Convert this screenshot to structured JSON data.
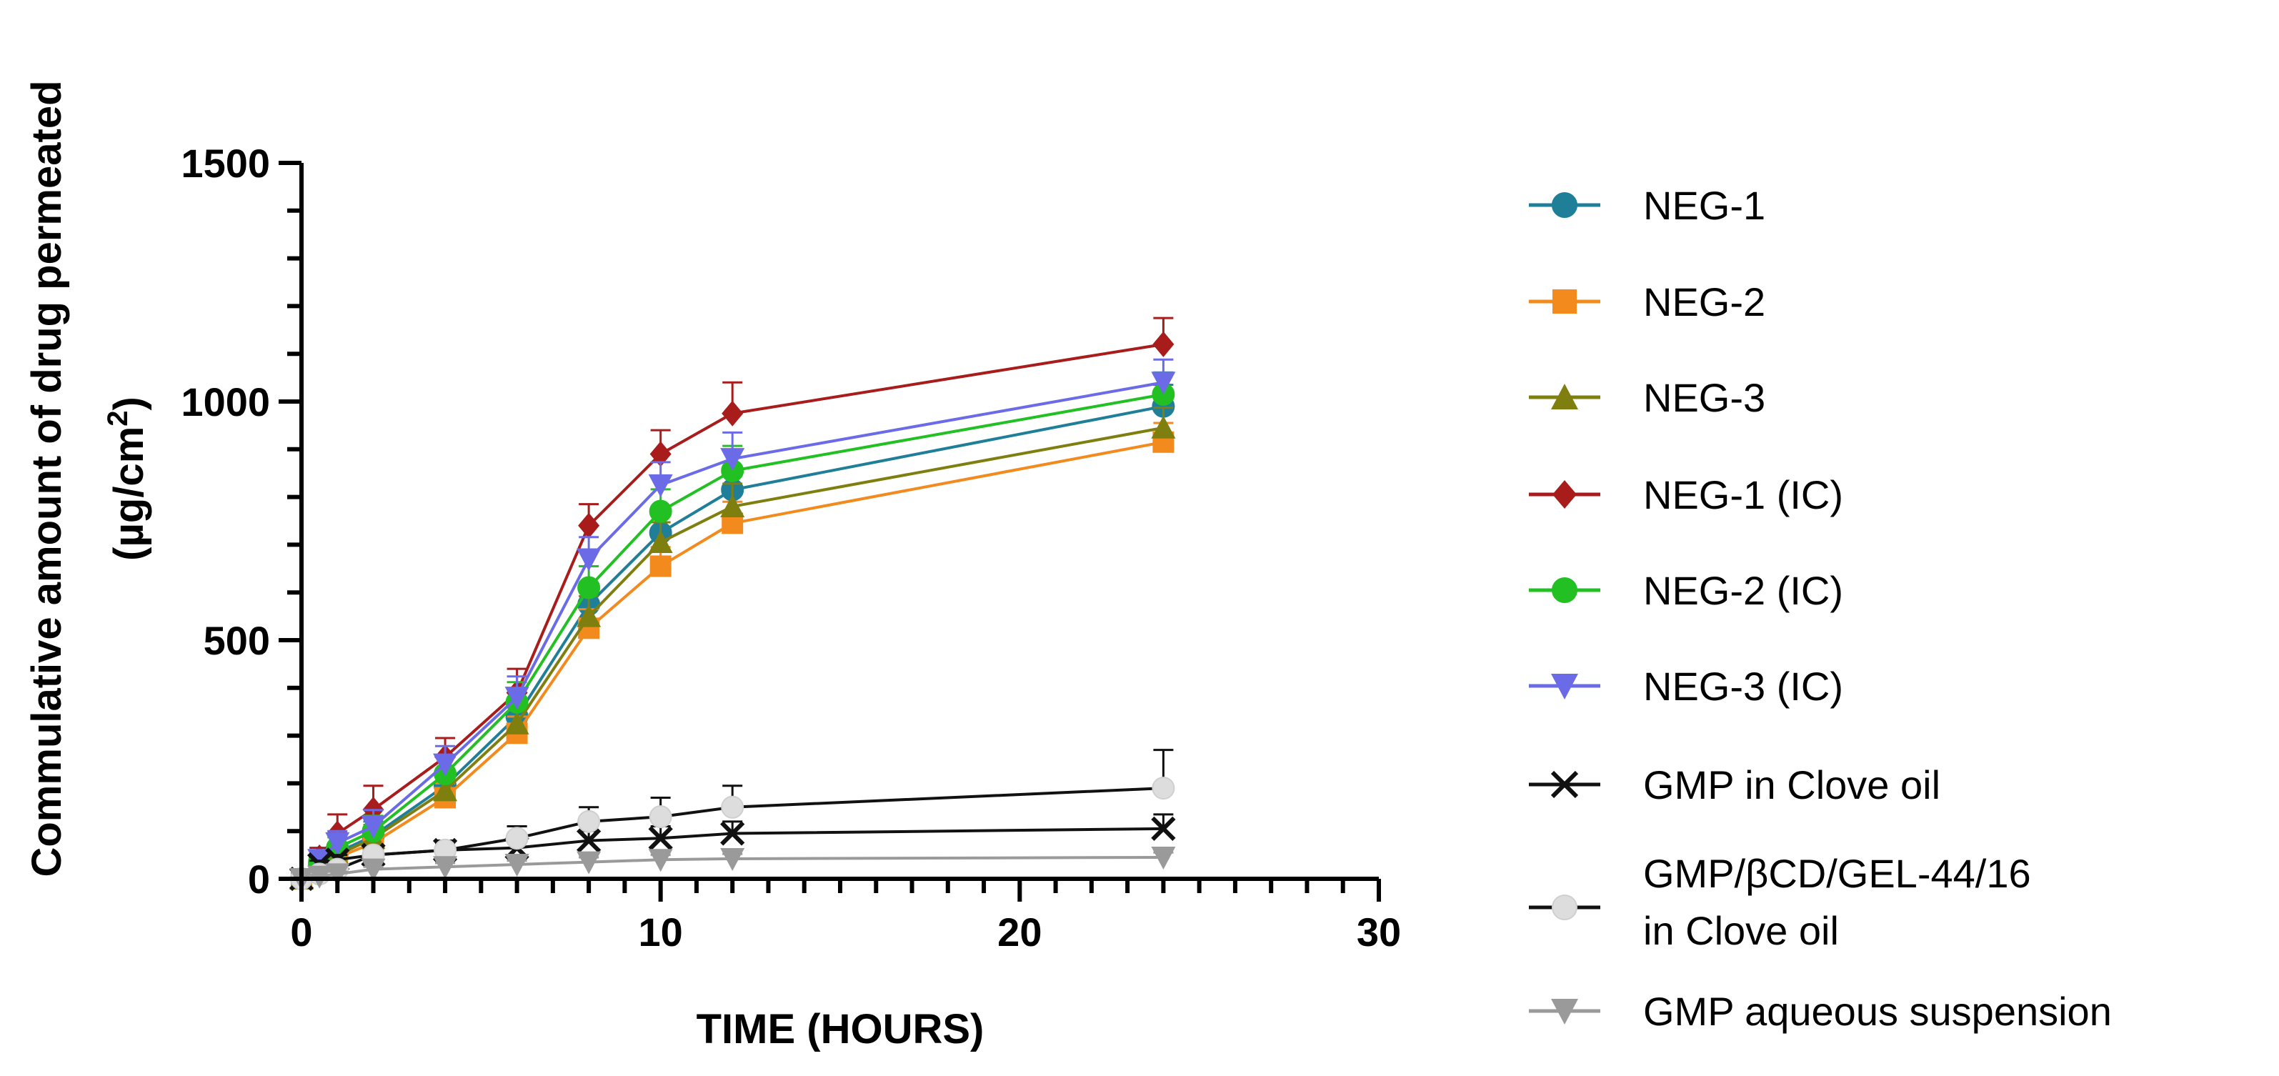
{
  "chart_data": {
    "type": "line",
    "title": "",
    "xlabel": "TIME (HOURS)",
    "ylabel_line1": "Commulative amount of drug permeated",
    "ylabel_line2": "(µg/cm",
    "ylabel_sup": "2",
    "ylabel_close": ")",
    "xlim": [
      0,
      30
    ],
    "ylim": [
      0,
      1500
    ],
    "x_ticks": [
      0,
      10,
      20,
      30
    ],
    "y_ticks": [
      0,
      500,
      1000,
      1500
    ],
    "x_tick_labels": [
      "0",
      "10",
      "20",
      "30"
    ],
    "y_tick_labels": [
      "0",
      "500",
      "1000",
      "1500"
    ],
    "legend_position": "right",
    "x": [
      0,
      0.5,
      1,
      2,
      4,
      6,
      8,
      10,
      12,
      24
    ],
    "series": [
      {
        "name": "NEG-1",
        "color": "#1f7f98",
        "marker": "circle",
        "values": [
          0,
          30,
          55,
          90,
          195,
          340,
          575,
          725,
          815,
          990
        ],
        "errors": [
          0,
          10,
          20,
          30,
          35,
          40,
          45,
          45,
          50,
          45
        ]
      },
      {
        "name": "NEG-2",
        "color": "#f28a1e",
        "marker": "square",
        "values": [
          0,
          25,
          45,
          75,
          170,
          305,
          525,
          655,
          745,
          915
        ],
        "errors": [
          0,
          10,
          15,
          25,
          30,
          35,
          40,
          40,
          45,
          40
        ]
      },
      {
        "name": "NEG-3",
        "color": "#7f7f10",
        "marker": "triangle-up",
        "values": [
          0,
          28,
          50,
          85,
          185,
          325,
          550,
          705,
          780,
          945
        ],
        "errors": [
          0,
          10,
          18,
          28,
          32,
          38,
          42,
          42,
          48,
          42
        ]
      },
      {
        "name": "NEG-1 (IC)",
        "color": "#a81c1c",
        "marker": "diamond",
        "values": [
          0,
          45,
          95,
          145,
          255,
          390,
          740,
          890,
          975,
          1120
        ],
        "errors": [
          0,
          20,
          40,
          50,
          40,
          50,
          45,
          50,
          65,
          55
        ]
      },
      {
        "name": "NEG-2 (IC)",
        "color": "#22c022",
        "marker": "circle",
        "values": [
          0,
          35,
          65,
          100,
          220,
          370,
          610,
          770,
          855,
          1015
        ],
        "errors": [
          0,
          12,
          22,
          32,
          36,
          42,
          45,
          46,
          52,
          46
        ]
      },
      {
        "name": "NEG-3 (IC)",
        "color": "#6b6be8",
        "marker": "triangle-down",
        "values": [
          0,
          40,
          75,
          110,
          240,
          380,
          670,
          825,
          880,
          1040
        ],
        "errors": [
          0,
          14,
          25,
          34,
          38,
          44,
          46,
          48,
          55,
          48
        ]
      },
      {
        "name": "GMP in Clove oil",
        "color": "#111111",
        "marker": "x",
        "values": [
          0,
          30,
          40,
          50,
          60,
          65,
          80,
          85,
          95,
          105
        ],
        "errors": [
          0,
          8,
          10,
          12,
          15,
          45,
          20,
          25,
          25,
          30
        ]
      },
      {
        "name": "GMP/βCD/GEL-44/16",
        "name_line2": "in Clove oil",
        "color": "#dddddd",
        "marker": "circle",
        "values": [
          0,
          10,
          20,
          50,
          60,
          85,
          120,
          130,
          150,
          190
        ],
        "errors": [
          0,
          5,
          8,
          15,
          20,
          25,
          30,
          40,
          45,
          80
        ]
      },
      {
        "name": "GMP aqueous suspension",
        "color": "#9a9a9a",
        "marker": "triangle-down",
        "values": [
          0,
          5,
          10,
          20,
          25,
          30,
          35,
          40,
          42,
          45
        ],
        "errors": [
          0,
          3,
          5,
          5,
          8,
          8,
          10,
          10,
          10,
          10
        ]
      }
    ]
  }
}
